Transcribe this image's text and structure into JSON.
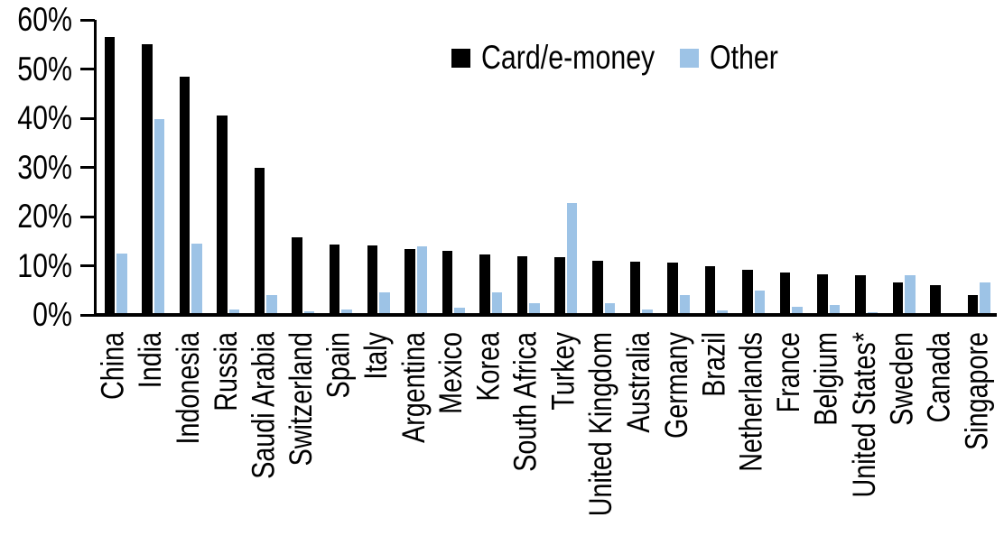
{
  "chart_data": {
    "type": "bar",
    "title": "",
    "xlabel": "",
    "ylabel": "",
    "ylim": [
      0,
      60
    ],
    "ytick_labels": [
      "60%",
      "50%",
      "40%",
      "30%",
      "20%",
      "10%",
      "0%"
    ],
    "grid": "off",
    "legend_position": "top-center",
    "categories": [
      "China",
      "India",
      "Indonesia",
      "Russia",
      "Saudi Arabia",
      "Switzerland",
      "Spain",
      "Italy",
      "Argentina",
      "Mexico",
      "Korea",
      "South Africa",
      "Turkey",
      "United Kingdom",
      "Australia",
      "Germany",
      "Brazil",
      "Netherlands",
      "France",
      "Belgium",
      "United States*",
      "Sweden",
      "Canada",
      "Singapore"
    ],
    "series": [
      {
        "name": "Card/e-money",
        "color": "#000000",
        "values": [
          56.5,
          55,
          48.5,
          40.5,
          30,
          15.8,
          14.3,
          14.2,
          13.4,
          13,
          12.3,
          11.9,
          11.7,
          11.1,
          10.9,
          10.7,
          10,
          9.2,
          8.7,
          8.3,
          8,
          6.6,
          6,
          4
        ]
      },
      {
        "name": "Other",
        "color": "#9DC3E6",
        "values": [
          12.4,
          39.8,
          14.5,
          1.1,
          4,
          0.8,
          1.2,
          4.6,
          14,
          1.5,
          4.6,
          2.4,
          22.7,
          2.4,
          1.1,
          4,
          1,
          4.9,
          1.7,
          2.1,
          0.5,
          8.1,
          0,
          6.7
        ]
      }
    ]
  },
  "colors": {
    "axis": "#000000",
    "background": "#FFFFFF"
  }
}
